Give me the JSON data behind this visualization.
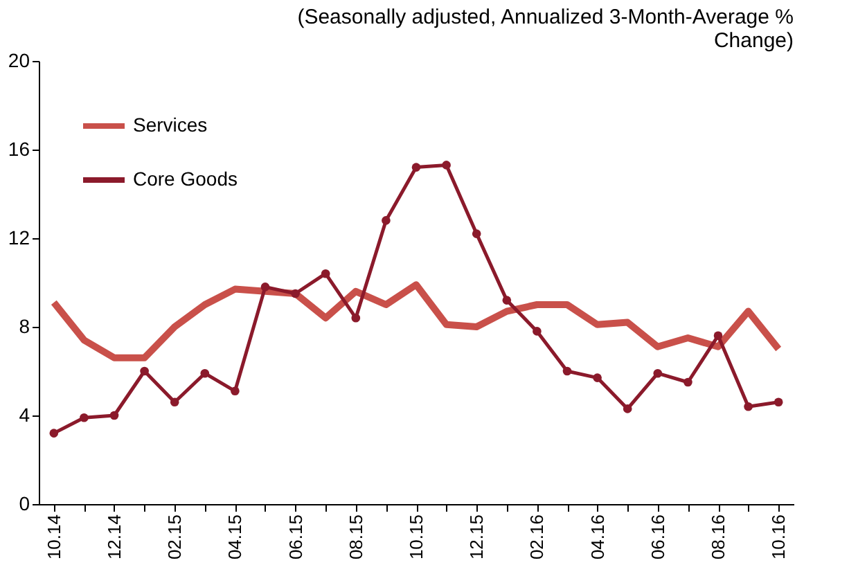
{
  "chart_data": {
    "type": "line",
    "title": "(Seasonally adjusted, Annualized 3-Month-Average % Change)",
    "categories": [
      "10.14",
      null,
      "12.14",
      null,
      "02.15",
      null,
      "04.15",
      null,
      "06.15",
      null,
      "08.15",
      null,
      "10.15",
      null,
      "12.15",
      null,
      "02.16",
      null,
      "04.16",
      null,
      "06.16",
      null,
      "08.16",
      null,
      "10.16"
    ],
    "series": [
      {
        "name": "Services",
        "color": "#c9504a",
        "marker": "none",
        "values": [
          9.1,
          7.4,
          6.6,
          6.6,
          8.0,
          9.0,
          9.7,
          9.6,
          9.5,
          8.4,
          9.6,
          9.0,
          9.9,
          8.1,
          8.0,
          8.7,
          9.0,
          9.0,
          8.1,
          8.2,
          7.1,
          7.5,
          7.1,
          8.7,
          7.0
        ]
      },
      {
        "name": "Core Goods",
        "color": "#8b1a2b",
        "marker": "circle",
        "values": [
          3.2,
          3.9,
          4.0,
          6.0,
          4.6,
          5.9,
          5.1,
          9.8,
          9.5,
          10.4,
          8.4,
          12.8,
          15.2,
          15.3,
          12.2,
          9.2,
          7.8,
          6.0,
          5.7,
          4.3,
          5.9,
          5.5,
          7.6,
          4.4,
          4.6
        ]
      }
    ],
    "ylim": [
      0,
      20
    ],
    "yticks": [
      0,
      4,
      8,
      12,
      16,
      20
    ],
    "grid": false,
    "legend": "top left"
  }
}
